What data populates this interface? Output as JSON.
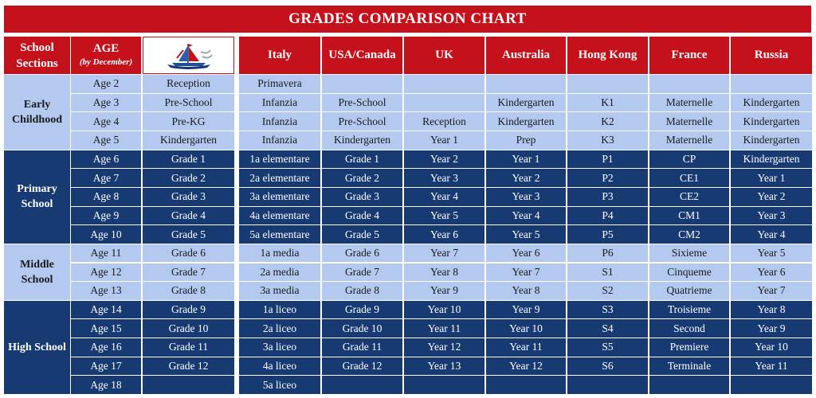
{
  "title": "GRADES COMPARISON CHART",
  "header": {
    "sections": "School Sections",
    "age": "AGE",
    "age_sub": "(by December)",
    "logo": "school-logo",
    "countries": [
      "Italy",
      "USA/Canada",
      "UK",
      "Australia",
      "Hong Kong",
      "France",
      "Russia"
    ]
  },
  "sections": [
    {
      "name": "Early Childhood",
      "theme": "light",
      "rows": 4
    },
    {
      "name": "Primary School",
      "theme": "dark",
      "rows": 5
    },
    {
      "name": "Middle School",
      "theme": "light",
      "rows": 3
    },
    {
      "name": "High School",
      "theme": "dark",
      "rows": 5
    }
  ],
  "rows": [
    {
      "age": "Age 2",
      "school": "Reception",
      "cells": [
        "Primavera",
        "",
        "",
        "",
        "",
        "",
        ""
      ]
    },
    {
      "age": "Age 3",
      "school": "Pre-School",
      "cells": [
        "Infanzia",
        "Pre-School",
        "",
        "Kindergarten",
        "K1",
        "Maternelle",
        "Kindergarten"
      ]
    },
    {
      "age": "Age 4",
      "school": "Pre-KG",
      "cells": [
        "Infanzia",
        "Pre-School",
        "Reception",
        "Kindergarten",
        "K2",
        "Maternelle",
        "Kindergarten"
      ]
    },
    {
      "age": "Age 5",
      "school": "Kindergarten",
      "cells": [
        "Infanzia",
        "Kindergarten",
        "Year 1",
        "Prep",
        "K3",
        "Maternelle",
        "Kindergarten"
      ]
    },
    {
      "age": "Age 6",
      "school": "Grade 1",
      "cells": [
        "1a elementare",
        "Grade 1",
        "Year 2",
        "Year 1",
        "P1",
        "CP",
        "Kindergarten"
      ]
    },
    {
      "age": "Age 7",
      "school": "Grade 2",
      "cells": [
        "2a elementare",
        "Grade 2",
        "Year 3",
        "Year 2",
        "P2",
        "CE1",
        "Year 1"
      ]
    },
    {
      "age": "Age 8",
      "school": "Grade 3",
      "cells": [
        "3a elementare",
        "Grade 3",
        "Year 4",
        "Year 3",
        "P3",
        "CE2",
        "Year 2"
      ]
    },
    {
      "age": "Age 9",
      "school": "Grade 4",
      "cells": [
        "4a elementare",
        "Grade 4",
        "Year 5",
        "Year 4",
        "P4",
        "CM1",
        "Year 3"
      ]
    },
    {
      "age": "Age 10",
      "school": "Grade 5",
      "cells": [
        "5a elementare",
        "Grade 5",
        "Year 6",
        "Year 5",
        "P5",
        "CM2",
        "Year 4"
      ]
    },
    {
      "age": "Age 11",
      "school": "Grade 6",
      "cells": [
        "1a media",
        "Grade 6",
        "Year 7",
        "Year 6",
        "P6",
        "Sixieme",
        "Year 5"
      ]
    },
    {
      "age": "Age 12",
      "school": "Grade 7",
      "cells": [
        "2a media",
        "Grade 7",
        "Year 8",
        "Year 7",
        "S1",
        "Cinqueme",
        "Year 6"
      ]
    },
    {
      "age": "Age 13",
      "school": "Grade 8",
      "cells": [
        "3a media",
        "Grade 8",
        "Year 9",
        "Year 8",
        "S2",
        "Quatrieme",
        "Year 7"
      ]
    },
    {
      "age": "Age 14",
      "school": "Grade 9",
      "cells": [
        "1a liceo",
        "Grade 9",
        "Year 10",
        "Year 9",
        "S3",
        "Troisieme",
        "Year 8"
      ]
    },
    {
      "age": "Age 15",
      "school": "Grade 10",
      "cells": [
        "2a liceo",
        "Grade 10",
        "Year 11",
        "Year 10",
        "S4",
        "Second",
        "Year 9"
      ]
    },
    {
      "age": "Age 16",
      "school": "Grade 11",
      "cells": [
        "3a liceo",
        "Grade 11",
        "Year 12",
        "Year 11",
        "S5",
        "Premiere",
        "Year 10"
      ]
    },
    {
      "age": "Age 17",
      "school": "Grade 12",
      "cells": [
        "4a liceo",
        "Grade 12",
        "Year 13",
        "Year 12",
        "S6",
        "Terminale",
        "Year 11"
      ]
    },
    {
      "age": "Age 18",
      "school": "",
      "cells": [
        "5a liceo",
        "",
        "",
        "",
        "",
        "",
        ""
      ]
    }
  ],
  "colors": {
    "red": "#c4111c",
    "dark_blue": "#173a73",
    "light_blue": "#b3c9ef"
  }
}
